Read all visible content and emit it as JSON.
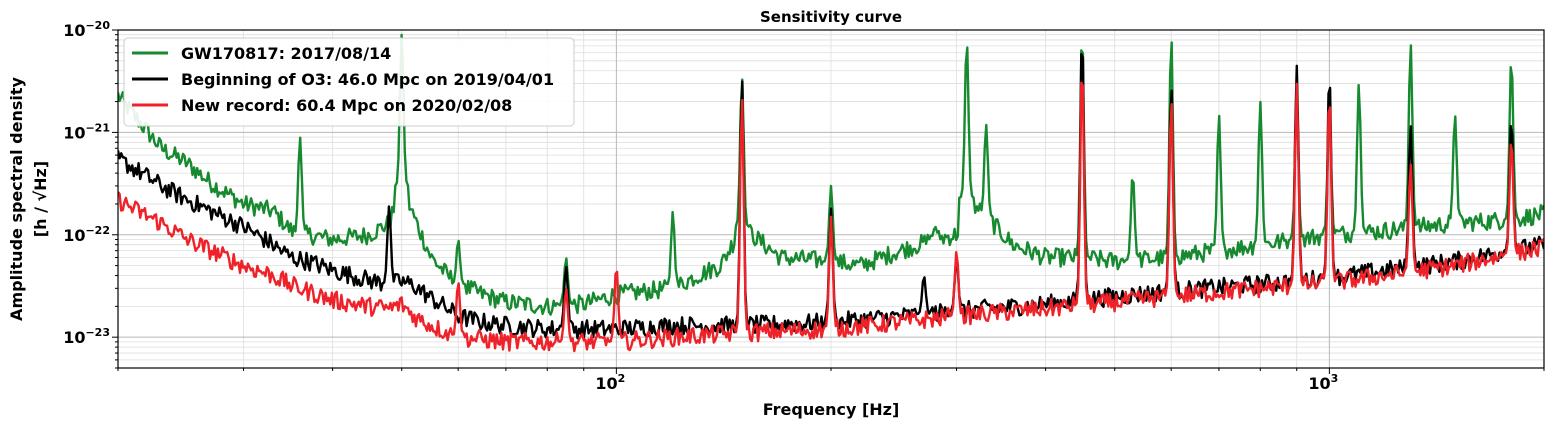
{
  "chart_data": {
    "type": "line",
    "title": "Sensitivity curve",
    "xlabel": "Frequency [Hz]",
    "ylabel_line1": "Amplitude spectral density",
    "ylabel_line2": "[h / √Hz]",
    "xscale": "log",
    "yscale": "log",
    "xlim": [
      20,
      2000
    ],
    "ylim": [
      5e-24,
      1e-20
    ],
    "grid": true,
    "legend_position": "upper-left",
    "x_tick_labels": [
      {
        "value": 100,
        "base": "10",
        "exp": "2"
      },
      {
        "value": 1000,
        "base": "10",
        "exp": "3"
      }
    ],
    "y_tick_labels": [
      {
        "value": 1e-20,
        "base": "10",
        "exp": "−20"
      },
      {
        "value": 1e-21,
        "base": "10",
        "exp": "−21"
      },
      {
        "value": 1e-22,
        "base": "10",
        "exp": "−22"
      },
      {
        "value": 1e-23,
        "base": "10",
        "exp": "−23"
      }
    ],
    "series": [
      {
        "name": "GW170817: 2017/08/14",
        "color": "#178a30",
        "x": [
          20,
          21,
          23,
          25,
          27,
          30,
          33,
          35,
          36,
          37,
          40,
          45,
          48,
          50,
          52,
          55,
          58,
          60,
          65,
          70,
          80,
          90,
          100,
          110,
          120,
          130,
          140,
          150,
          170,
          200,
          220,
          250,
          280,
          300,
          310,
          330,
          360,
          400,
          450,
          500,
          600,
          700,
          800,
          900,
          1000,
          1200,
          1500,
          1800,
          2000
        ],
        "y": [
          2.3e-21,
          1.5e-21,
          7e-22,
          5e-22,
          3.2e-22,
          2e-22,
          1.7e-22,
          1.1e-22,
          1e-22,
          1e-22,
          9e-23,
          1e-22,
          1.3e-22,
          3e-22,
          1.5e-22,
          6e-23,
          4e-23,
          3.3e-23,
          2.6e-23,
          2.2e-23,
          2e-23,
          2.1e-23,
          2.6e-23,
          2.8e-23,
          3e-23,
          4e-23,
          5e-23,
          1.2e-22,
          6e-23,
          5.5e-23,
          5e-23,
          7e-23,
          9e-23,
          1e-22,
          2.3e-22,
          1.5e-22,
          8e-23,
          6e-23,
          6e-23,
          5.5e-23,
          6e-23,
          7e-23,
          8e-23,
          9e-23,
          1e-22,
          1.1e-22,
          1.3e-22,
          1.4e-22,
          1.6e-22
        ],
        "peaks": [
          [
            36,
            9e-22
          ],
          [
            50,
            9e-21
          ],
          [
            60,
            9e-23
          ],
          [
            85,
            6e-23
          ],
          [
            120,
            1.7e-22
          ],
          [
            150,
            3.5e-21
          ],
          [
            200,
            3e-22
          ],
          [
            280,
            1.2e-22
          ],
          [
            310,
            8e-21
          ],
          [
            330,
            1.2e-21
          ],
          [
            450,
            1e-20
          ],
          [
            530,
            4e-22
          ],
          [
            600,
            9e-21
          ],
          [
            700,
            1.5e-21
          ],
          [
            800,
            2e-21
          ],
          [
            900,
            2e-21
          ],
          [
            1000,
            1.7e-21
          ],
          [
            1100,
            3e-21
          ],
          [
            1300,
            7.5e-21
          ],
          [
            1500,
            1.5e-21
          ],
          [
            1800,
            5.5e-21
          ]
        ]
      },
      {
        "name": "Beginning of O3: 46.0 Mpc on 2019/04/01",
        "color": "#000000",
        "x": [
          20,
          21,
          23,
          25,
          27,
          30,
          33,
          35,
          37,
          40,
          45,
          48,
          50,
          52,
          55,
          58,
          60,
          65,
          70,
          80,
          90,
          100,
          120,
          150,
          200,
          250,
          300,
          400,
          500,
          600,
          800,
          1000,
          1200,
          1500,
          1800,
          2000
        ],
        "y": [
          5.5e-22,
          4.5e-22,
          3e-22,
          2.2e-22,
          1.7e-22,
          1.2e-22,
          8e-23,
          6e-23,
          5.5e-23,
          4.5e-23,
          3.6e-23,
          3.3e-23,
          3.5e-23,
          3.2e-23,
          2.4e-23,
          1.9e-23,
          1.6e-23,
          1.4e-23,
          1.3e-23,
          1.2e-23,
          1.2e-23,
          1.2e-23,
          1.3e-23,
          1.3e-23,
          1.4e-23,
          1.6e-23,
          1.8e-23,
          2.1e-23,
          2.5e-23,
          2.8e-23,
          3.3e-23,
          3.8e-23,
          4.5e-23,
          5.5e-23,
          7e-23,
          8e-23
        ],
        "peaks": [
          [
            48,
            1.9e-22
          ],
          [
            85,
            5e-23
          ],
          [
            150,
            3.5e-21
          ],
          [
            200,
            1.8e-22
          ],
          [
            270,
            4e-23
          ],
          [
            300,
            6e-23
          ],
          [
            450,
            1e-20
          ],
          [
            600,
            3e-21
          ],
          [
            900,
            4.5e-21
          ],
          [
            1000,
            4e-21
          ],
          [
            1300,
            1.2e-21
          ],
          [
            1800,
            1.4e-21
          ]
        ]
      },
      {
        "name": "New record: 60.4 Mpc on 2020/02/08",
        "color": "#ee2228",
        "x": [
          20,
          21,
          23,
          25,
          27,
          30,
          33,
          35,
          37,
          40,
          45,
          48,
          50,
          52,
          55,
          58,
          60,
          65,
          70,
          80,
          90,
          100,
          120,
          150,
          200,
          250,
          300,
          400,
          500,
          600,
          800,
          1000,
          1200,
          1500,
          1800,
          2000
        ],
        "y": [
          2.2e-22,
          1.8e-22,
          1.3e-22,
          9e-23,
          7e-23,
          5e-23,
          4e-23,
          3.2e-23,
          2.8e-23,
          2.3e-23,
          2e-23,
          1.9e-23,
          2.1e-23,
          1.6e-23,
          1.3e-23,
          1.1e-23,
          1e-23,
          9.5e-24,
          9e-24,
          9e-24,
          9e-24,
          9e-24,
          1e-23,
          1.1e-23,
          1.2e-23,
          1.4e-23,
          1.6e-23,
          1.9e-23,
          2.2e-23,
          2.5e-23,
          3e-23,
          3.4e-23,
          4e-23,
          5e-23,
          6.5e-23,
          7.5e-23
        ],
        "peaks": [
          [
            60,
            3.5e-23
          ],
          [
            85,
            3e-23
          ],
          [
            100,
            5e-23
          ],
          [
            150,
            2.3e-21
          ],
          [
            200,
            1.5e-22
          ],
          [
            300,
            7e-23
          ],
          [
            450,
            5e-21
          ],
          [
            600,
            2.2e-21
          ],
          [
            900,
            3e-21
          ],
          [
            1000,
            2.5e-21
          ],
          [
            1300,
            5e-22
          ],
          [
            1800,
            9e-22
          ]
        ]
      }
    ]
  }
}
